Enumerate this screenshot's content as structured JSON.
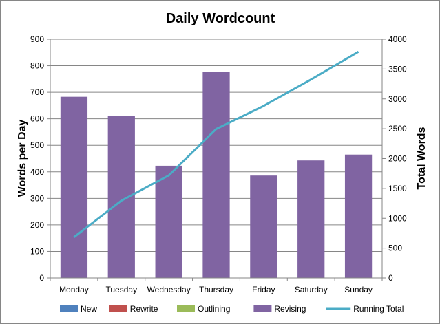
{
  "chart_data": {
    "type": "bar",
    "title": "Daily Wordcount",
    "ylabel": "Words per Day",
    "y2label": "Total Words",
    "categories": [
      "Monday",
      "Tuesday",
      "Wednesday",
      "Thursday",
      "Friday",
      "Saturday",
      "Sunday"
    ],
    "ylim": [
      0,
      900
    ],
    "y2lim": [
      0,
      4000
    ],
    "yticks": [
      "0",
      "100",
      "200",
      "300",
      "400",
      "500",
      "600",
      "700",
      "800",
      "900"
    ],
    "y2ticks": [
      "0",
      "500",
      "1000",
      "1500",
      "2000",
      "2500",
      "3000",
      "3500",
      "4000"
    ],
    "grid": true,
    "legend_position": "bottom",
    "series": [
      {
        "name": "New",
        "kind": "bar",
        "axis": "left",
        "color": "#4f81bd",
        "values": [
          0,
          0,
          0,
          0,
          0,
          0,
          0
        ]
      },
      {
        "name": "Rewrite",
        "kind": "bar",
        "axis": "left",
        "color": "#c0504d",
        "values": [
          0,
          0,
          0,
          0,
          0,
          0,
          0
        ]
      },
      {
        "name": "Outlining",
        "kind": "bar",
        "axis": "left",
        "color": "#9bbb59",
        "values": [
          0,
          0,
          0,
          0,
          0,
          0,
          0
        ]
      },
      {
        "name": "Revising",
        "kind": "bar",
        "axis": "left",
        "color": "#8064a2",
        "values": [
          683,
          612,
          423,
          778,
          386,
          443,
          465
        ]
      },
      {
        "name": "Running Total",
        "kind": "line",
        "axis": "right",
        "color": "#4bacc6",
        "values": [
          683,
          1295,
          1718,
          2496,
          2882,
          3325,
          3790
        ]
      }
    ]
  }
}
